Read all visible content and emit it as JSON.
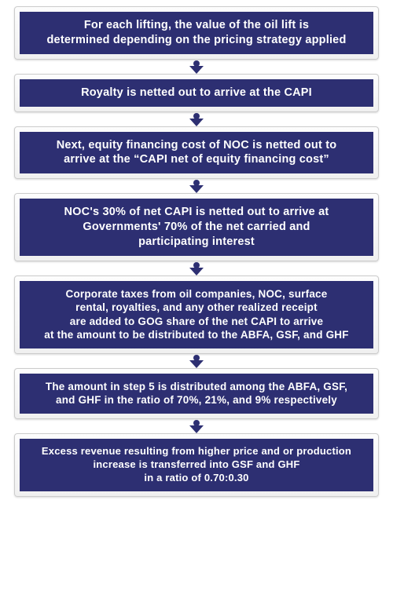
{
  "diagram": {
    "type": "flowchart",
    "background_color": "#ffffff",
    "box_fill": "#2d2f72",
    "box_text_color": "#ffffff",
    "frame_border_color": "#cccccc",
    "frame_bg_top": "#fdfdfd",
    "frame_bg_bottom": "#f0f0f0",
    "arrow_color": "#2d2f72",
    "font_family": "Arial",
    "font_weight": "bold",
    "steps": [
      {
        "id": 1,
        "lines": [
          "For each lifting, the value of the oil lift is",
          "determined depending on the pricing strategy applied"
        ],
        "fontsize": 14.5,
        "size_class": "sz-large"
      },
      {
        "id": 2,
        "lines": [
          "Royalty is netted out to arrive at the CAPI"
        ],
        "fontsize": 14.5,
        "size_class": "sz-large"
      },
      {
        "id": 3,
        "lines": [
          "Next, equity financing cost of NOC is netted out to",
          "arrive at the “CAPI net of equity financing cost”"
        ],
        "fontsize": 14.5,
        "size_class": "sz-large"
      },
      {
        "id": 4,
        "lines": [
          "NOC's 30% of net CAPI is netted out to arrive at",
          "Governments' 70% of the net carried and",
          "participating interest"
        ],
        "fontsize": 14.5,
        "size_class": "sz-large"
      },
      {
        "id": 5,
        "lines": [
          "Corporate taxes from oil companies, NOC, surface",
          "rental, royalties, and any other realized receipt",
          "are added to GOG share of the net CAPI to arrive",
          "at the amount to be distributed to the ABFA, GSF, and GHF"
        ],
        "fontsize": 13.5,
        "size_class": "sz-med"
      },
      {
        "id": 6,
        "lines": [
          "The amount in step 5 is distributed among the ABFA, GSF,",
          "and GHF in the ratio of 70%, 21%, and 9% respectively"
        ],
        "fontsize": 13.5,
        "size_class": "sz-med"
      },
      {
        "id": 7,
        "lines": [
          "Excess revenue resulting from higher price and or production",
          "increase is transferred into GSF and GHF",
          "in a ratio of 0.70:0.30"
        ],
        "fontsize": 13,
        "size_class": "sz-small"
      }
    ]
  }
}
